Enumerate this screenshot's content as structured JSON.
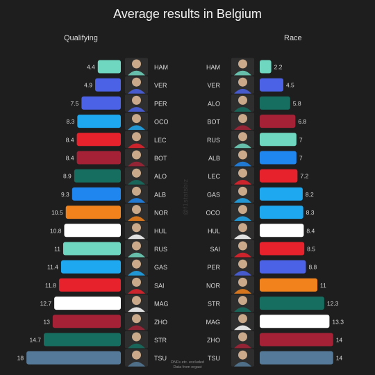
{
  "title": "Average results in Belgium",
  "watermark": "@f1statsbiz",
  "footnote": [
    "DNFs etc. excluded",
    "Data from ergast"
  ],
  "team_colors": {
    "mercedes": "#6fd6c0",
    "red_bull": "#4b62e6",
    "alpine": "#1ea8f0",
    "ferrari": "#e8222c",
    "alfa_romeo": "#a52236",
    "aston_martin": "#166e60",
    "williams": "#1e86ee",
    "mclaren": "#f2831c",
    "haas": "#ffffff",
    "alphatauri": "#557a99"
  },
  "chart_data": [
    {
      "type": "bar",
      "title": "Qualifying",
      "orientation": "horizontal",
      "direction": "right-to-left",
      "categories": [
        "HAM",
        "VER",
        "PER",
        "OCO",
        "LEC",
        "BOT",
        "ALO",
        "ALB",
        "NOR",
        "HUL",
        "RUS",
        "GAS",
        "SAI",
        "MAG",
        "ZHO",
        "STR",
        "TSU"
      ],
      "values": [
        4.4,
        4.9,
        7.5,
        8.3,
        8.4,
        8.4,
        8.9,
        9.3,
        10.5,
        10.8,
        11,
        11.4,
        11.8,
        12.7,
        13,
        14.7,
        18
      ],
      "labels": [
        "4.4",
        "4.9",
        "7.5",
        "8.3",
        "8.4",
        "8.4",
        "8.9",
        "9.3",
        "10.5",
        "10.8",
        "11",
        "11.4",
        "11.8",
        "12.7",
        "13",
        "14.7",
        "18"
      ],
      "teams": [
        "mercedes",
        "red_bull",
        "red_bull",
        "alpine",
        "ferrari",
        "alfa_romeo",
        "aston_martin",
        "williams",
        "mclaren",
        "haas",
        "mercedes",
        "alpine",
        "ferrari",
        "haas",
        "alfa_romeo",
        "aston_martin",
        "alphatauri"
      ]
    },
    {
      "type": "bar",
      "title": "Race",
      "orientation": "horizontal",
      "direction": "left-to-right",
      "categories": [
        "HAM",
        "VER",
        "ALO",
        "BOT",
        "RUS",
        "ALB",
        "LEC",
        "GAS",
        "OCO",
        "HUL",
        "SAI",
        "PER",
        "NOR",
        "STR",
        "MAG",
        "ZHO",
        "TSU"
      ],
      "values": [
        2.2,
        4.5,
        5.8,
        6.8,
        7,
        7,
        7.2,
        8.2,
        8.3,
        8.4,
        8.5,
        8.8,
        11,
        12.3,
        13.3,
        14,
        14
      ],
      "labels": [
        "2.2",
        "4.5",
        "5.8",
        "6.8",
        "7",
        "7",
        "7.2",
        "8.2",
        "8.3",
        "8.4",
        "8.5",
        "8.8",
        "11",
        "12.3",
        "13.3",
        "14",
        "14"
      ],
      "teams": [
        "mercedes",
        "red_bull",
        "aston_martin",
        "alfa_romeo",
        "mercedes",
        "williams",
        "ferrari",
        "alpine",
        "alpine",
        "haas",
        "ferrari",
        "red_bull",
        "mclaren",
        "aston_martin",
        "haas",
        "alfa_romeo",
        "alphatauri"
      ]
    }
  ]
}
